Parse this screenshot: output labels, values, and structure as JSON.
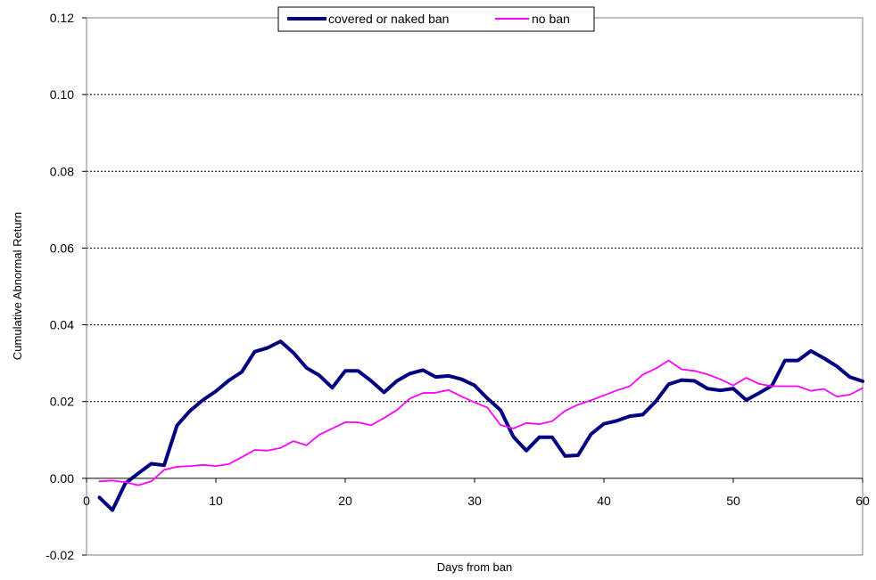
{
  "chart_data": {
    "type": "line",
    "xlabel": "Days from ban",
    "ylabel": "Cumulative Abnormal Return",
    "xlim": [
      0,
      60
    ],
    "ylim": [
      -0.02,
      0.12
    ],
    "x_ticks": [
      "0",
      "10",
      "20",
      "30",
      "40",
      "50",
      "60"
    ],
    "y_ticks": [
      "0.12",
      "0.10",
      "0.08",
      "0.06",
      "0.04",
      "0.02",
      "0.00",
      "-0.02"
    ],
    "grid": "horizontal dashed",
    "legend_position": "top-center",
    "series": [
      {
        "name": "covered or naked ban",
        "color": "#000080",
        "x": [
          1,
          2,
          3,
          4,
          5,
          6,
          7,
          8,
          9,
          10,
          11,
          12,
          13,
          14,
          15,
          16,
          17,
          18,
          19,
          20,
          21,
          22,
          23,
          24,
          25,
          26,
          27,
          28,
          29,
          30,
          31,
          32,
          33,
          34,
          35,
          36,
          37,
          38,
          39,
          40,
          41,
          42,
          43,
          44,
          45,
          46,
          47,
          48,
          49,
          50,
          51,
          52,
          53,
          54,
          55,
          56,
          57,
          58,
          59,
          60
        ],
        "values": [
          -0.005,
          -0.0083,
          -0.0013,
          0.0013,
          0.0038,
          0.0034,
          0.0138,
          0.0176,
          0.0204,
          0.0227,
          0.0255,
          0.0277,
          0.033,
          0.034,
          0.0357,
          0.0327,
          0.0288,
          0.0268,
          0.0236,
          0.028,
          0.028,
          0.0254,
          0.0224,
          0.0254,
          0.0273,
          0.0282,
          0.0264,
          0.0267,
          0.0258,
          0.0242,
          0.0208,
          0.0178,
          0.0108,
          0.0072,
          0.0107,
          0.0107,
          0.0058,
          0.006,
          0.0115,
          0.0142,
          0.015,
          0.0162,
          0.0166,
          0.02,
          0.0245,
          0.0256,
          0.0254,
          0.0234,
          0.0229,
          0.0234,
          0.0204,
          0.0222,
          0.0242,
          0.0307,
          0.0307,
          0.0332,
          0.0313,
          0.0292,
          0.0264,
          0.0253
        ]
      },
      {
        "name": "no ban",
        "color": "#FF00FF",
        "x": [
          1,
          2,
          3,
          4,
          5,
          6,
          7,
          8,
          9,
          10,
          11,
          12,
          13,
          14,
          15,
          16,
          17,
          18,
          19,
          20,
          21,
          22,
          23,
          24,
          25,
          26,
          27,
          28,
          29,
          30,
          31,
          32,
          33,
          34,
          35,
          36,
          37,
          38,
          39,
          40,
          41,
          42,
          43,
          44,
          45,
          46,
          47,
          48,
          49,
          50,
          51,
          52,
          53,
          54,
          55,
          56,
          57,
          58,
          59,
          60
        ],
        "values": [
          -0.0008,
          -0.0006,
          -0.001,
          -0.0018,
          -0.0008,
          0.0022,
          0.003,
          0.0032,
          0.0035,
          0.0032,
          0.0037,
          0.0055,
          0.0074,
          0.0072,
          0.0079,
          0.0097,
          0.0086,
          0.0114,
          0.013,
          0.0146,
          0.0146,
          0.0138,
          0.0157,
          0.0178,
          0.0208,
          0.0222,
          0.0223,
          0.023,
          0.0213,
          0.0198,
          0.0184,
          0.0139,
          0.013,
          0.0144,
          0.0141,
          0.0149,
          0.0176,
          0.0192,
          0.0203,
          0.0216,
          0.0229,
          0.024,
          0.027,
          0.0286,
          0.0307,
          0.0284,
          0.028,
          0.0271,
          0.0258,
          0.0242,
          0.0262,
          0.0246,
          0.024,
          0.024,
          0.024,
          0.0228,
          0.0233,
          0.0213,
          0.0218,
          0.0235
        ]
      }
    ]
  }
}
